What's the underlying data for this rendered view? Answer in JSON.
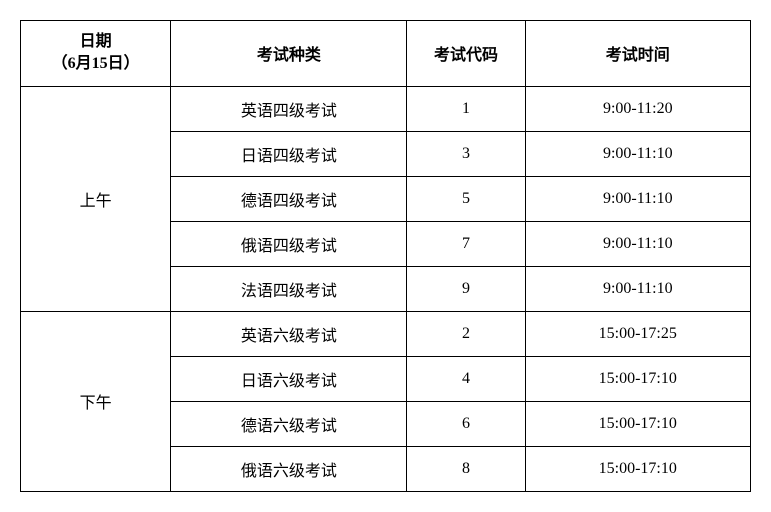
{
  "table": {
    "headers": {
      "date_line1": "日期",
      "date_line2": "（6月15日）",
      "type": "考试种类",
      "code": "考试代码",
      "time": "考试时间"
    },
    "sessions": [
      {
        "label": "上午",
        "rows": [
          {
            "type": "英语四级考试",
            "code": "1",
            "time": "9:00-11:20"
          },
          {
            "type": "日语四级考试",
            "code": "3",
            "time": "9:00-11:10"
          },
          {
            "type": "德语四级考试",
            "code": "5",
            "time": "9:00-11:10"
          },
          {
            "type": "俄语四级考试",
            "code": "7",
            "time": "9:00-11:10"
          },
          {
            "type": "法语四级考试",
            "code": "9",
            "time": "9:00-11:10"
          }
        ]
      },
      {
        "label": "下午",
        "rows": [
          {
            "type": "英语六级考试",
            "code": "2",
            "time": "15:00-17:25"
          },
          {
            "type": "日语六级考试",
            "code": "4",
            "time": "15:00-17:10"
          },
          {
            "type": "德语六级考试",
            "code": "6",
            "time": "15:00-17:10"
          },
          {
            "type": "俄语六级考试",
            "code": "8",
            "time": "15:00-17:10"
          }
        ]
      }
    ]
  },
  "style": {
    "border_color": "#000000",
    "background_color": "#ffffff",
    "text_color": "#000000",
    "font_family": "SimSun",
    "header_fontsize": 16,
    "cell_fontsize": 16,
    "header_fontweight": "bold",
    "col_widths": {
      "date": 140,
      "type": 220,
      "code": 110,
      "time": 210
    }
  }
}
